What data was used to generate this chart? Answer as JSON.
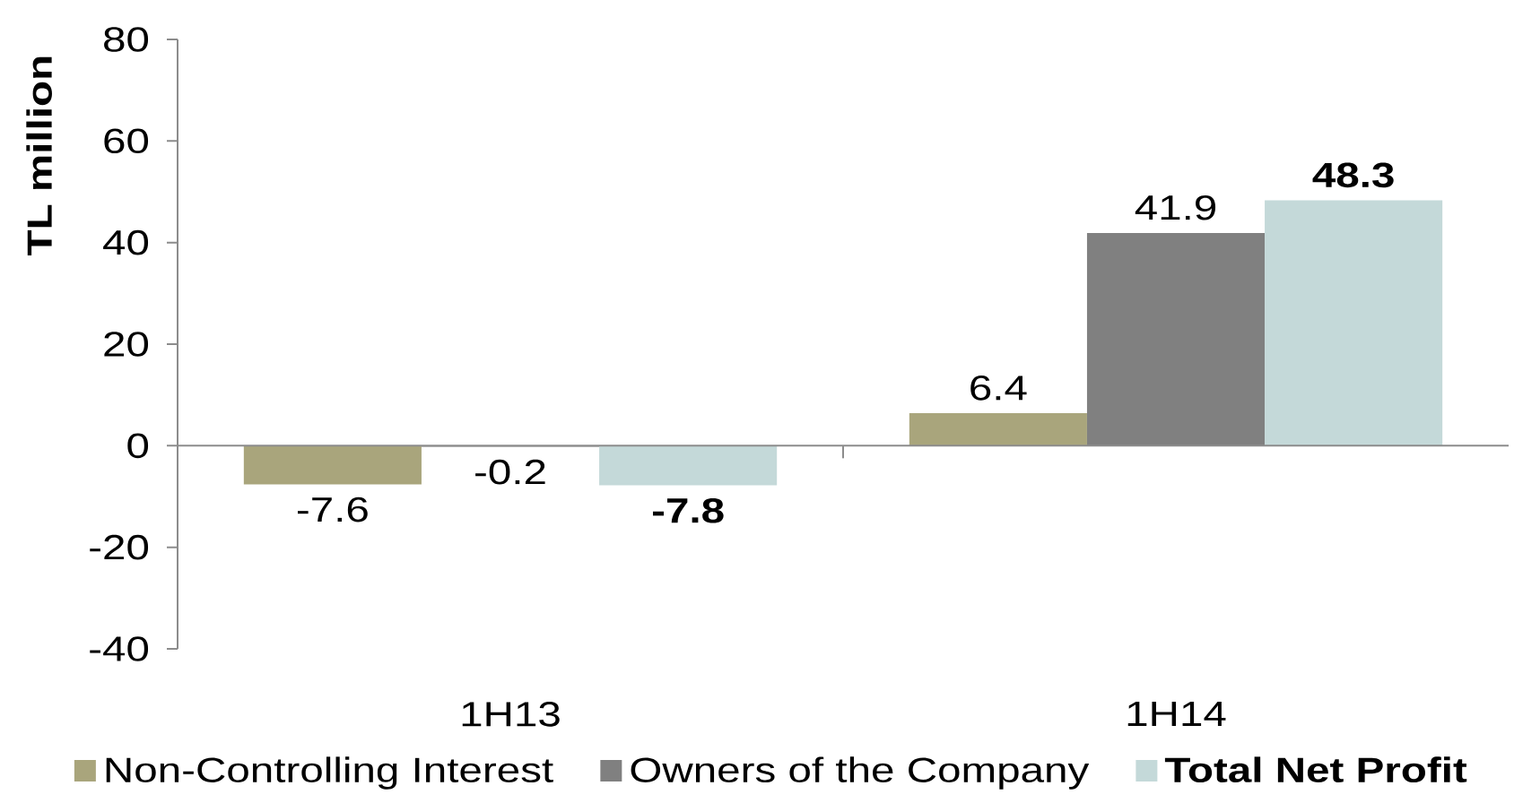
{
  "chart_data": {
    "type": "bar",
    "ylabel": "TL million",
    "categories": [
      "1H13",
      "1H14"
    ],
    "series": [
      {
        "name": "Non-Controlling Interest",
        "color": "#a9a57c",
        "values": [
          -7.6,
          6.4
        ],
        "value_labels": [
          "-7.6",
          "6.4"
        ]
      },
      {
        "name": "Owners of the Company",
        "color": "#808080",
        "values": [
          -0.2,
          41.9
        ],
        "value_labels": [
          "-0.2",
          "41.9"
        ]
      },
      {
        "name": "**Total Net Profit**",
        "color": "#c4d9d9",
        "values": [
          -7.8,
          48.3
        ],
        "value_labels": [
          "**-7.8**",
          "**48.3**"
        ]
      }
    ],
    "ylim": [
      -40,
      80
    ],
    "yticks": [
      -40,
      -20,
      0,
      20,
      40,
      60,
      80
    ],
    "legend": "bottom"
  }
}
